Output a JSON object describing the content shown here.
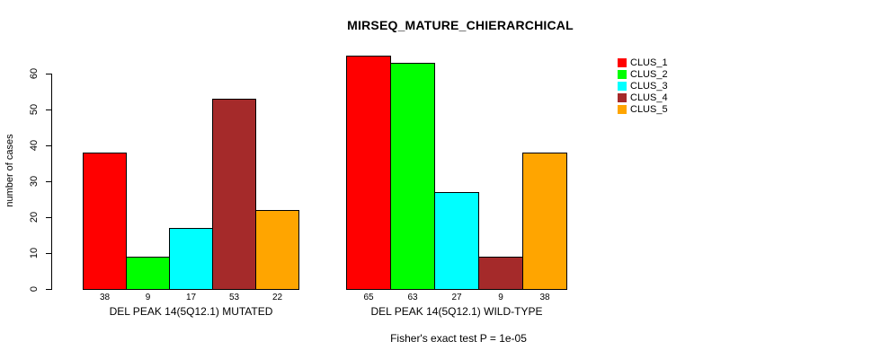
{
  "chart_data": {
    "type": "bar",
    "title": "MIRSEQ_MATURE_CHIERARCHICAL",
    "ylabel": "number of cases",
    "caption": "Fisher's exact test P = 1e-05",
    "ylim": [
      0,
      65
    ],
    "yticks": [
      0,
      10,
      20,
      30,
      40,
      50,
      60
    ],
    "grid": false,
    "bar_border_color": "#000000",
    "colors": [
      "#FF0000",
      "#00FF00",
      "#00FFFF",
      "#A52A2A",
      "#FFA500"
    ],
    "legend": {
      "position": "top-right",
      "entries": [
        {
          "label": "CLUS_1",
          "color": "#FF0000"
        },
        {
          "label": "CLUS_2",
          "color": "#00FF00"
        },
        {
          "label": "CLUS_3",
          "color": "#00FFFF"
        },
        {
          "label": "CLUS_4",
          "color": "#A52A2A"
        },
        {
          "label": "CLUS_5",
          "color": "#FFA500"
        }
      ]
    },
    "groups": [
      {
        "label": "DEL PEAK 14(5Q12.1) MUTATED",
        "values": [
          38,
          9,
          17,
          53,
          22
        ]
      },
      {
        "label": "DEL PEAK 14(5Q12.1) WILD-TYPE",
        "values": [
          65,
          63,
          27,
          9,
          38
        ]
      }
    ],
    "value_labels_shown": true
  }
}
